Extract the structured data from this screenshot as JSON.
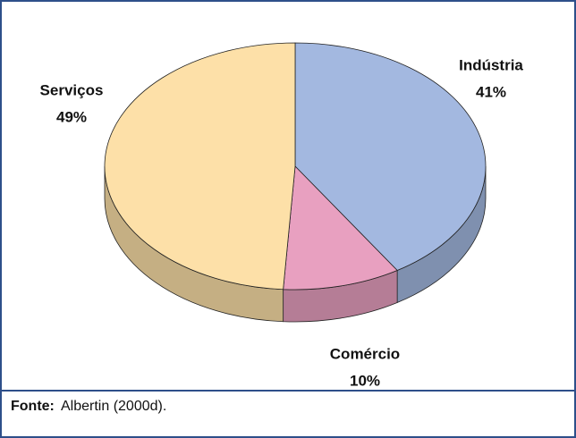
{
  "chart_data": {
    "type": "pie3d",
    "categories": [
      "Indústria",
      "Comércio",
      "Serviços"
    ],
    "values": [
      41,
      10,
      49
    ],
    "value_labels": [
      "41%",
      "10%",
      "49%"
    ],
    "colors": [
      "#a3b8e0",
      "#e8a0c0",
      "#fde0a8"
    ],
    "footnote": {
      "label": "Fonte:",
      "text": "Albertin (2000d)."
    }
  }
}
